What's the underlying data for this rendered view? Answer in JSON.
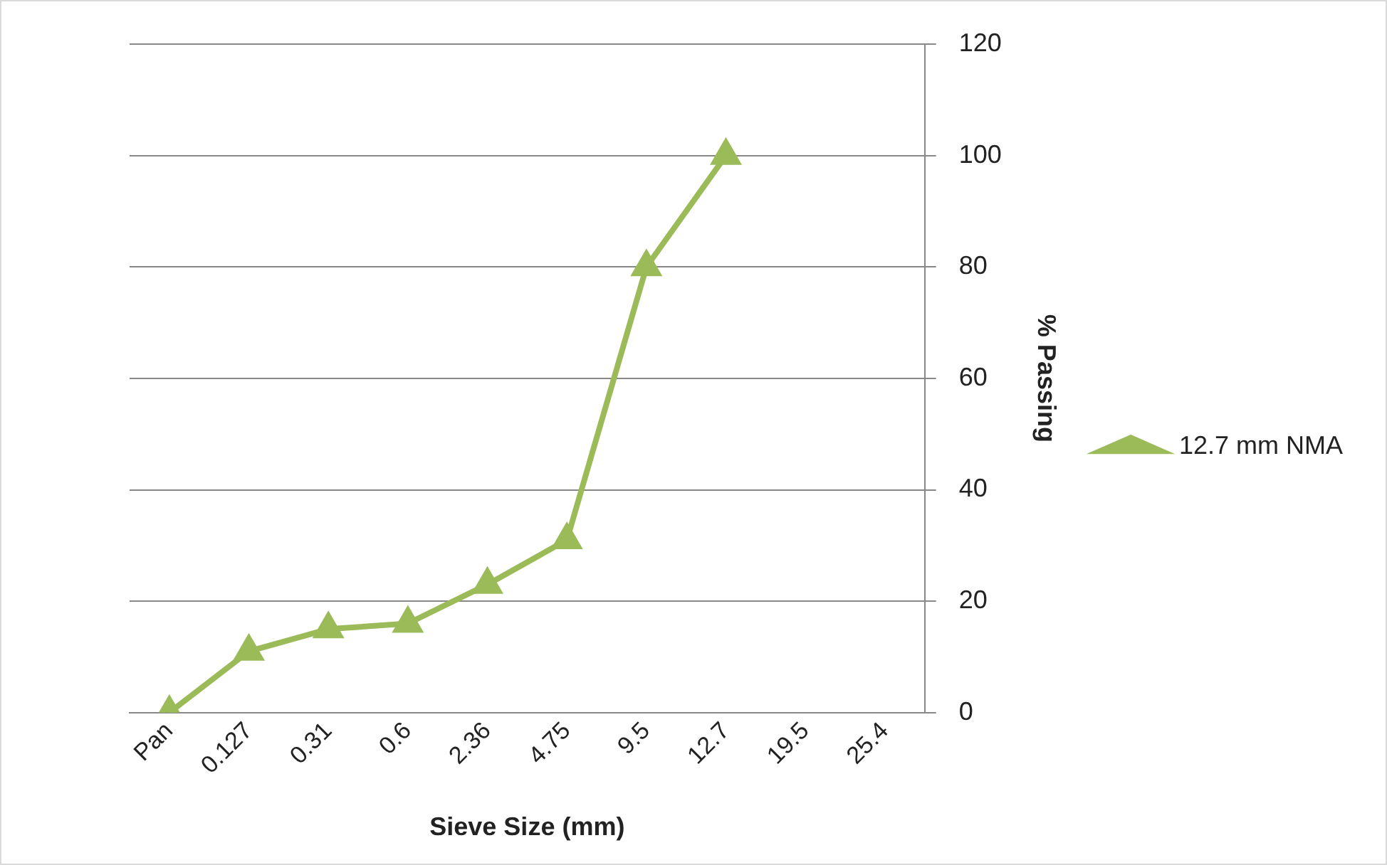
{
  "chart_data": {
    "type": "line",
    "xlabel": "Sieve Size (mm)",
    "ylabel": "% Passing",
    "categories": [
      "Pan",
      "0.127",
      "0.31",
      "0.6",
      "2.36",
      "4.75",
      "9.5",
      "12.7",
      "19.5",
      "25.4"
    ],
    "series": [
      {
        "name": "12.7 mm NMA",
        "color": "#9bbb59",
        "values": [
          0,
          11,
          15,
          16,
          23,
          31,
          80,
          100,
          null,
          null
        ]
      }
    ],
    "ylim": [
      0,
      120
    ],
    "yticks": [
      0,
      20,
      40,
      60,
      80,
      100,
      120
    ],
    "grid": "y",
    "legend": "right",
    "marker": "triangle",
    "line_style": "solid"
  }
}
